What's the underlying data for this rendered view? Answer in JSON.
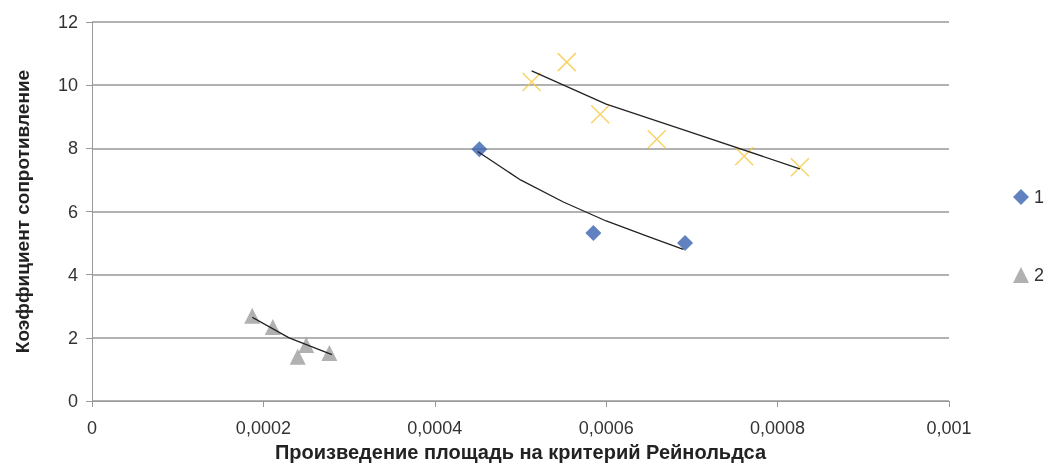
{
  "chart_data": {
    "type": "scatter",
    "xlabel": "Произведение площадь на критерий Рейнольдса",
    "ylabel": "Коэффициент сопротивление",
    "xlim": [
      0,
      0.001
    ],
    "xticks": [
      0,
      {
        "value": 0.0002,
        "label": "0,0002"
      },
      {
        "value": 0.0004,
        "label": "0,0004"
      },
      {
        "value": 0.0006,
        "label": "0,0006"
      },
      {
        "value": 0.0008,
        "label": "0,0008"
      },
      {
        "value": 0.001,
        "label": "0,001"
      }
    ],
    "ylim": [
      0,
      12
    ],
    "yticks": [
      0,
      2,
      4,
      6,
      8,
      10,
      12
    ],
    "grid": "y",
    "legend": "right",
    "series": [
      {
        "name": "1",
        "color": "#3a62b0",
        "marker": "diamond",
        "x": [
          0.000452,
          0.000585,
          0.000692
        ],
        "values": [
          7.97,
          5.32,
          5.0
        ]
      },
      {
        "name": "2",
        "color": "#9e9e9e",
        "marker": "triangle",
        "x": [
          0.000187,
          0.000211,
          0.00025,
          0.00024,
          0.000277
        ],
        "values": [
          2.7,
          2.34,
          1.77,
          1.4,
          1.52
        ]
      },
      {
        "color": "#f5c842",
        "marker": "cross",
        "x": [
          0.000513,
          0.000554,
          0.000593,
          0.000659,
          0.000761,
          0.000826
        ],
        "values": [
          10.1,
          10.73,
          9.08,
          8.29,
          7.75,
          7.4
        ]
      },
      {
        "type": "line",
        "color": "#222222",
        "marker": "none",
        "x": [
          0.00045,
          0.0005,
          0.00055,
          0.0006,
          0.00065,
          0.00069
        ],
        "values": [
          7.9,
          7.0,
          6.3,
          5.7,
          5.2,
          4.8
        ]
      },
      {
        "type": "line",
        "color": "#222222",
        "marker": "none",
        "x": [
          0.000513,
          0.0006,
          0.0007,
          0.000826
        ],
        "values": [
          10.45,
          9.4,
          8.5,
          7.35
        ]
      },
      {
        "type": "line",
        "color": "#222222",
        "marker": "none",
        "x": [
          0.000187,
          0.00023,
          0.00028
        ],
        "values": [
          2.65,
          2.0,
          1.47
        ]
      }
    ]
  }
}
